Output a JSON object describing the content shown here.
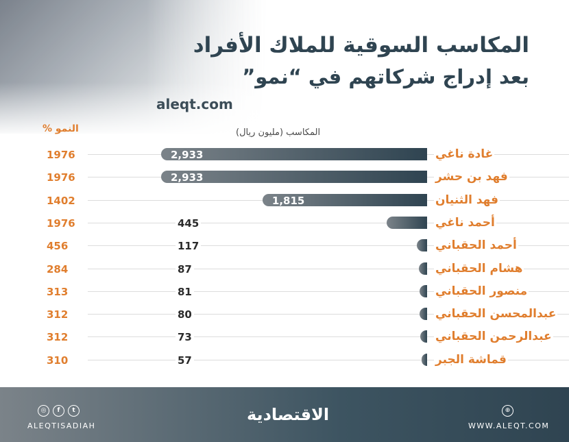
{
  "header": {
    "title": "المكاسب السوقية للملاك الأفراد",
    "subtitle": "بعد إدراج شركاتهم في “نمو”",
    "site": "aleqt.com"
  },
  "chart_data": {
    "type": "bar",
    "orientation": "horizontal",
    "value_column_label": "المكاسب (مليون ريال)",
    "growth_column_label": "النمو %",
    "xlim": [
      0,
      2933
    ],
    "categories": [
      "غادة ناغي",
      "فهد بن حشر",
      "فهد الثنيان",
      "أحمد ناغي",
      "أحمد الحقباني",
      "هشام الحقباني",
      "منصور الحقباني",
      "عبدالمحسن الحقباني",
      "عبدالرحمن الحقباني",
      "قماشة الجبر"
    ],
    "values": [
      2933,
      2933,
      1815,
      445,
      117,
      87,
      81,
      80,
      73,
      57
    ],
    "value_labels": [
      "2,933",
      "2,933",
      "1,815",
      "445",
      "117",
      "87",
      "81",
      "80",
      "73",
      "57"
    ],
    "growth": [
      "1976",
      "1976",
      "1402",
      "1976",
      "456",
      "284",
      "313",
      "312",
      "312",
      "310"
    ],
    "bar_color_start": "#7b8389",
    "bar_color_end": "#2f4451",
    "label_color": "#e07e2e"
  },
  "footer": {
    "brand": "الاقتصادية",
    "handle": "ALEQTISADIAH",
    "website": "WWW.ALEQT.COM",
    "social_icons": [
      "instagram-icon",
      "facebook-icon",
      "twitter-icon"
    ],
    "web_icon": "globe-icon"
  }
}
